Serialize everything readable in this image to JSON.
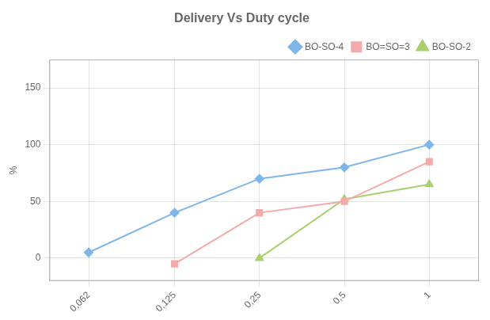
{
  "chart_data": {
    "type": "line",
    "title": "Delivery Vs Duty cycle",
    "ylabel": "%",
    "x": [
      0.062,
      0.125,
      0.25,
      0.5,
      1.0
    ],
    "series": [
      {
        "name": "BO-SO-4",
        "color": "#7EB6E8",
        "marker": "diamond",
        "values": [
          5,
          40,
          70,
          80,
          100
        ]
      },
      {
        "name": "BO=SO=3",
        "color": "#F4AAAA",
        "marker": "square",
        "values": [
          null,
          -5,
          40,
          50,
          85
        ]
      },
      {
        "name": "BO-SO-2",
        "color": "#AACF6E",
        "marker": "triangle",
        "values": [
          null,
          null,
          0,
          52,
          65
        ]
      }
    ],
    "log": "x",
    "xlim": [
      0.045,
      1.5
    ],
    "xticks": [
      {
        "value": 0.062,
        "label": "0,062"
      },
      {
        "value": 0.125,
        "label": "0,125"
      },
      {
        "value": 0.25,
        "label": "0,25"
      },
      {
        "value": 0.5,
        "label": "0,5"
      },
      {
        "value": 1.0,
        "label": "1"
      }
    ],
    "ylim": [
      -20,
      175
    ],
    "yticks": [
      0,
      50,
      100,
      150
    ],
    "grid": true,
    "legend": "upper right"
  }
}
